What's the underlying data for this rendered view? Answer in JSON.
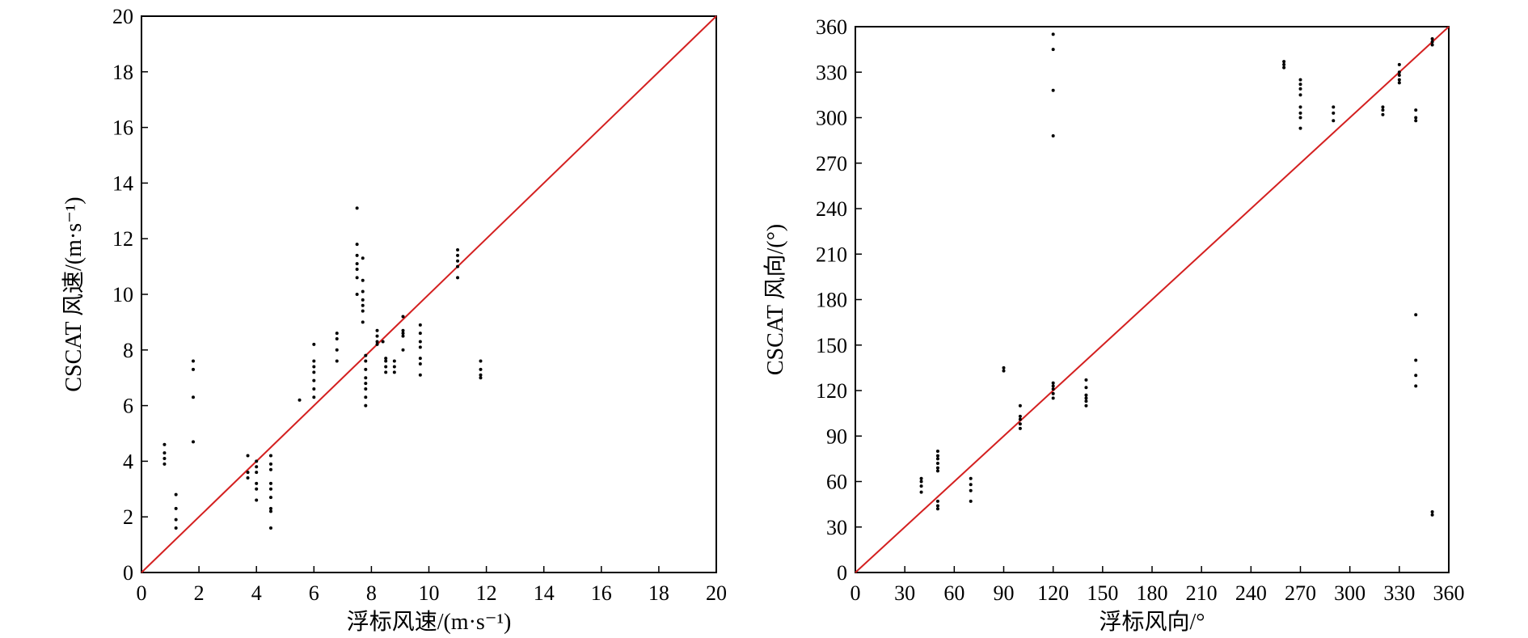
{
  "chart_data": [
    {
      "type": "scatter",
      "xlabel": "浮标风速/(m·s⁻¹)",
      "ylabel": "CSCAT 风速/(m·s⁻¹)",
      "xlim": [
        0,
        20
      ],
      "ylim": [
        0,
        20
      ],
      "xticks": [
        0,
        2,
        4,
        6,
        8,
        10,
        12,
        14,
        16,
        18,
        20
      ],
      "yticks": [
        0,
        2,
        4,
        6,
        8,
        10,
        12,
        14,
        16,
        18,
        20
      ],
      "grid": false,
      "reference_line": {
        "from": [
          0,
          0
        ],
        "to": [
          20,
          20
        ],
        "color": "#d42020"
      },
      "point_color": "#000000",
      "points": [
        [
          0.8,
          4.6
        ],
        [
          0.8,
          4.3
        ],
        [
          0.8,
          4.1
        ],
        [
          0.8,
          3.9
        ],
        [
          1.2,
          2.8
        ],
        [
          1.2,
          2.3
        ],
        [
          1.2,
          1.9
        ],
        [
          1.2,
          1.6
        ],
        [
          1.8,
          7.6
        ],
        [
          1.8,
          7.3
        ],
        [
          1.8,
          6.3
        ],
        [
          1.8,
          4.7
        ],
        [
          3.7,
          4.2
        ],
        [
          3.7,
          3.6
        ],
        [
          3.7,
          3.4
        ],
        [
          4.0,
          4.0
        ],
        [
          4.0,
          3.8
        ],
        [
          4.0,
          3.6
        ],
        [
          4.0,
          3.2
        ],
        [
          4.0,
          3.0
        ],
        [
          4.0,
          2.6
        ],
        [
          4.5,
          4.2
        ],
        [
          4.5,
          3.9
        ],
        [
          4.5,
          3.7
        ],
        [
          4.5,
          3.2
        ],
        [
          4.5,
          3.0
        ],
        [
          4.5,
          2.7
        ],
        [
          4.5,
          2.3
        ],
        [
          4.5,
          2.2
        ],
        [
          4.5,
          1.6
        ],
        [
          5.5,
          6.2
        ],
        [
          6.0,
          8.2
        ],
        [
          6.0,
          7.6
        ],
        [
          6.0,
          7.4
        ],
        [
          6.0,
          7.2
        ],
        [
          6.0,
          6.9
        ],
        [
          6.0,
          6.6
        ],
        [
          6.0,
          6.3
        ],
        [
          6.8,
          8.6
        ],
        [
          6.8,
          8.4
        ],
        [
          6.8,
          8.0
        ],
        [
          6.8,
          7.6
        ],
        [
          7.5,
          13.1
        ],
        [
          7.5,
          11.8
        ],
        [
          7.5,
          11.4
        ],
        [
          7.5,
          11.1
        ],
        [
          7.5,
          10.9
        ],
        [
          7.5,
          10.6
        ],
        [
          7.5,
          10.0
        ],
        [
          7.7,
          11.3
        ],
        [
          7.7,
          10.5
        ],
        [
          7.7,
          10.1
        ],
        [
          7.7,
          9.8
        ],
        [
          7.7,
          9.6
        ],
        [
          7.7,
          9.4
        ],
        [
          7.7,
          9.0
        ],
        [
          7.8,
          7.8
        ],
        [
          7.8,
          7.6
        ],
        [
          7.8,
          7.3
        ],
        [
          7.8,
          7.0
        ],
        [
          7.8,
          6.8
        ],
        [
          7.8,
          6.6
        ],
        [
          7.8,
          6.3
        ],
        [
          7.8,
          6.0
        ],
        [
          8.2,
          8.7
        ],
        [
          8.2,
          8.5
        ],
        [
          8.2,
          8.3
        ],
        [
          8.2,
          8.2
        ],
        [
          8.4,
          8.3
        ],
        [
          8.5,
          7.7
        ],
        [
          8.5,
          7.6
        ],
        [
          8.5,
          7.4
        ],
        [
          8.5,
          7.2
        ],
        [
          8.8,
          7.6
        ],
        [
          8.8,
          7.4
        ],
        [
          8.8,
          7.2
        ],
        [
          9.1,
          9.2
        ],
        [
          9.1,
          8.7
        ],
        [
          9.1,
          8.6
        ],
        [
          9.1,
          8.5
        ],
        [
          9.1,
          8.0
        ],
        [
          9.7,
          8.9
        ],
        [
          9.7,
          8.6
        ],
        [
          9.7,
          8.3
        ],
        [
          9.7,
          8.1
        ],
        [
          9.7,
          7.7
        ],
        [
          9.7,
          7.5
        ],
        [
          9.7,
          7.1
        ],
        [
          11.0,
          11.6
        ],
        [
          11.0,
          11.4
        ],
        [
          11.0,
          11.2
        ],
        [
          11.0,
          11.0
        ],
        [
          11.0,
          10.6
        ],
        [
          11.8,
          7.6
        ],
        [
          11.8,
          7.3
        ],
        [
          11.8,
          7.1
        ],
        [
          11.8,
          7.0
        ]
      ]
    },
    {
      "type": "scatter",
      "xlabel": "浮标风向/°",
      "ylabel": "CSCAT 风向/(°)",
      "xlim": [
        0,
        360
      ],
      "ylim": [
        0,
        360
      ],
      "xticks": [
        0,
        30,
        60,
        90,
        120,
        150,
        180,
        210,
        240,
        270,
        300,
        330,
        360
      ],
      "yticks": [
        0,
        30,
        60,
        90,
        120,
        150,
        180,
        210,
        240,
        270,
        300,
        330,
        360
      ],
      "grid": false,
      "reference_line": {
        "from": [
          0,
          0
        ],
        "to": [
          360,
          360
        ],
        "color": "#d42020"
      },
      "point_color": "#000000",
      "points": [
        [
          40,
          62
        ],
        [
          40,
          60
        ],
        [
          40,
          57
        ],
        [
          40,
          53
        ],
        [
          50,
          80
        ],
        [
          50,
          77
        ],
        [
          50,
          75
        ],
        [
          50,
          72
        ],
        [
          50,
          69
        ],
        [
          50,
          67
        ],
        [
          50,
          47
        ],
        [
          50,
          44
        ],
        [
          50,
          42
        ],
        [
          70,
          62
        ],
        [
          70,
          58
        ],
        [
          70,
          54
        ],
        [
          70,
          47
        ],
        [
          90,
          135
        ],
        [
          90,
          133
        ],
        [
          100,
          110
        ],
        [
          100,
          103
        ],
        [
          100,
          101
        ],
        [
          100,
          98
        ],
        [
          100,
          95
        ],
        [
          120,
          125
        ],
        [
          120,
          123
        ],
        [
          120,
          121
        ],
        [
          120,
          118
        ],
        [
          120,
          115
        ],
        [
          120,
          355
        ],
        [
          120,
          345
        ],
        [
          120,
          318
        ],
        [
          120,
          288
        ],
        [
          140,
          127
        ],
        [
          140,
          122
        ],
        [
          140,
          117
        ],
        [
          140,
          115
        ],
        [
          140,
          113
        ],
        [
          140,
          110
        ],
        [
          260,
          337
        ],
        [
          260,
          335
        ],
        [
          260,
          333
        ],
        [
          270,
          325
        ],
        [
          270,
          322
        ],
        [
          270,
          319
        ],
        [
          270,
          315
        ],
        [
          270,
          307
        ],
        [
          270,
          303
        ],
        [
          270,
          300
        ],
        [
          270,
          293
        ],
        [
          290,
          307
        ],
        [
          290,
          303
        ],
        [
          290,
          298
        ],
        [
          320,
          307
        ],
        [
          320,
          305
        ],
        [
          320,
          302
        ],
        [
          330,
          335
        ],
        [
          330,
          330
        ],
        [
          330,
          328
        ],
        [
          330,
          325
        ],
        [
          330,
          323
        ],
        [
          340,
          305
        ],
        [
          340,
          300
        ],
        [
          340,
          298
        ],
        [
          340,
          170
        ],
        [
          340,
          140
        ],
        [
          340,
          130
        ],
        [
          340,
          123
        ],
        [
          350,
          352
        ],
        [
          350,
          350
        ],
        [
          350,
          348
        ],
        [
          350,
          40
        ],
        [
          350,
          38
        ]
      ]
    }
  ]
}
